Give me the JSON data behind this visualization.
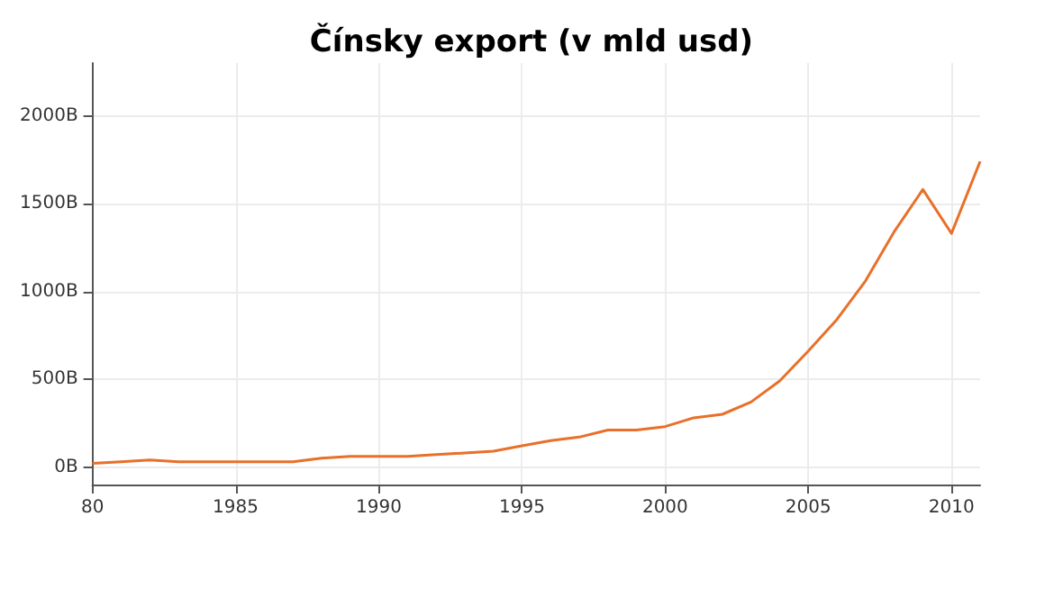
{
  "chart_data": {
    "type": "line",
    "title": "Čínsky export (v mld usd)",
    "x": [
      1980,
      1981,
      1982,
      1983,
      1984,
      1985,
      1986,
      1987,
      1988,
      1989,
      1990,
      1991,
      1992,
      1993,
      1994,
      1995,
      1996,
      1997,
      1998,
      1999,
      2000,
      2001,
      2002,
      2003,
      2004,
      2005,
      2006,
      2007,
      2008,
      2009,
      2010,
      2011
    ],
    "series": [
      {
        "color": "#e8702a",
        "values": [
          20,
          30,
          40,
          30,
          30,
          30,
          30,
          30,
          50,
          60,
          60,
          60,
          70,
          80,
          90,
          120,
          150,
          170,
          210,
          210,
          230,
          280,
          300,
          370,
          490,
          660,
          840,
          1060,
          1340,
          1580,
          1330,
          1740
        ]
      }
    ],
    "xlim": [
      1980,
      2011
    ],
    "xticks": [
      {
        "value": 1980,
        "label": "80"
      },
      1985,
      1990,
      1995,
      2000,
      2005,
      2010
    ],
    "ylim": [
      -100,
      2300
    ],
    "yticks": [
      {
        "value": 0,
        "label": "0B"
      },
      {
        "value": 500,
        "label": "500B"
      },
      {
        "value": 1000,
        "label": "1000B"
      },
      {
        "value": 1500,
        "label": "1500B"
      },
      {
        "value": 2000,
        "label": "2000B"
      }
    ],
    "grid": true,
    "marker": "none",
    "line_style": "solid"
  }
}
